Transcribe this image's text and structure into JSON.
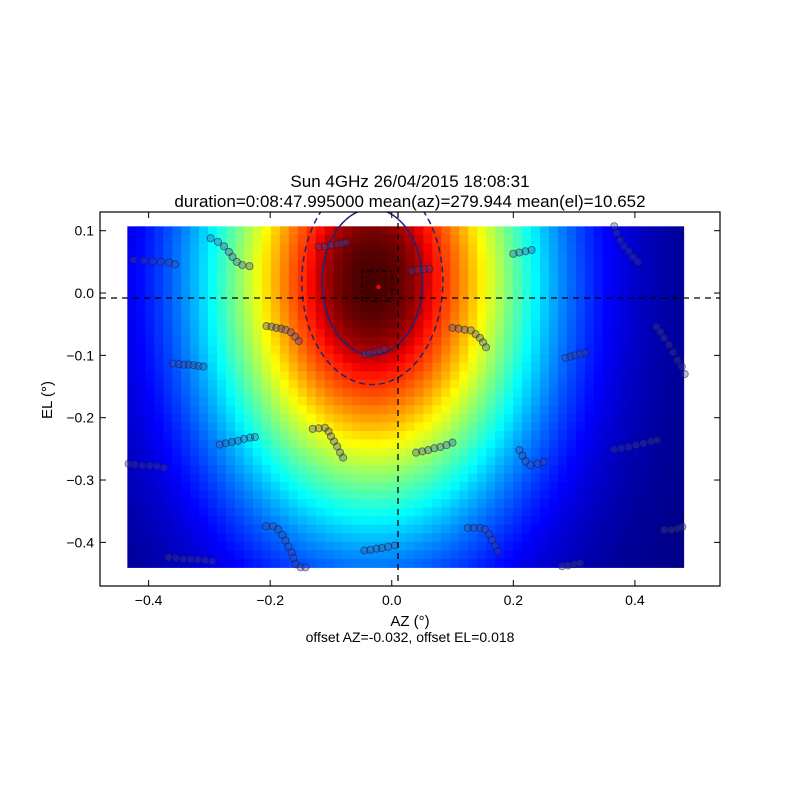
{
  "chart_data": {
    "type": "heatmap",
    "title": "Sun 4GHz 26/04/2015 18:08:31",
    "subtitle": "duration=0:08:47.995000 mean(az)=279.944 mean(el)=10.652",
    "xlabel": "AZ (°)",
    "ylabel": "EL (°)",
    "footer": "offset AZ=-0.032, offset EL=0.018",
    "xlim": [
      -0.48,
      0.54
    ],
    "ylim": [
      -0.47,
      0.13
    ],
    "x_ticks": [
      -0.4,
      -0.2,
      0.0,
      0.2,
      0.4
    ],
    "x_tick_labels": [
      "−0.4",
      "−0.2",
      "0.0",
      "0.2",
      "0.4"
    ],
    "y_ticks": [
      0.1,
      0.0,
      -0.1,
      -0.2,
      -0.3,
      -0.4
    ],
    "y_tick_labels": [
      "0.1",
      "0.0",
      "−0.1",
      "−0.2",
      "−0.3",
      "−0.4"
    ],
    "image_extent": {
      "x": [
        -0.435,
        0.48
      ],
      "y": [
        -0.44,
        0.107
      ]
    },
    "beam_model": {
      "center_az": -0.032,
      "center_el": 0.018,
      "sigma_az": 0.19,
      "sigma_el": 0.27,
      "colormap": "jet"
    },
    "contours": [
      {
        "style": "solid",
        "color": "#1a237e",
        "level": 0.91
      },
      {
        "style": "dashed",
        "color": "#1a237e",
        "level": 0.83
      }
    ],
    "crosshair": {
      "az": 0.0,
      "el": 0.0,
      "style": "dashed"
    },
    "peak_marker": {
      "az": -0.032,
      "el": 0.018,
      "color": "#ff0000"
    },
    "peak_box": {
      "az": [
        -0.058,
        -0.008
      ],
      "el": [
        -0.008,
        0.042
      ]
    },
    "scan_points": [
      {
        "az": -0.425,
        "el": 0.053
      },
      {
        "az": -0.408,
        "el": 0.052
      },
      {
        "az": -0.394,
        "el": 0.051
      },
      {
        "az": -0.38,
        "el": 0.05
      },
      {
        "az": -0.366,
        "el": 0.049
      },
      {
        "az": -0.357,
        "el": 0.046
      },
      {
        "az": -0.298,
        "el": 0.088
      },
      {
        "az": -0.286,
        "el": 0.082
      },
      {
        "az": -0.276,
        "el": 0.075
      },
      {
        "az": -0.268,
        "el": 0.066
      },
      {
        "az": -0.262,
        "el": 0.058
      },
      {
        "az": -0.255,
        "el": 0.05
      },
      {
        "az": -0.246,
        "el": 0.045
      },
      {
        "az": -0.234,
        "el": 0.043
      },
      {
        "az": -0.12,
        "el": 0.074
      },
      {
        "az": -0.11,
        "el": 0.075
      },
      {
        "az": -0.1,
        "el": 0.077
      },
      {
        "az": -0.09,
        "el": 0.078
      },
      {
        "az": -0.082,
        "el": 0.079
      },
      {
        "az": -0.075,
        "el": 0.081
      },
      {
        "az": 0.033,
        "el": 0.035
      },
      {
        "az": 0.043,
        "el": 0.037
      },
      {
        "az": 0.053,
        "el": 0.038
      },
      {
        "az": 0.062,
        "el": 0.039
      },
      {
        "az": 0.2,
        "el": 0.063
      },
      {
        "az": 0.21,
        "el": 0.065
      },
      {
        "az": 0.22,
        "el": 0.067
      },
      {
        "az": 0.23,
        "el": 0.069
      },
      {
        "az": 0.366,
        "el": 0.107
      },
      {
        "az": 0.37,
        "el": 0.096
      },
      {
        "az": 0.376,
        "el": 0.085
      },
      {
        "az": 0.382,
        "el": 0.075
      },
      {
        "az": 0.39,
        "el": 0.067
      },
      {
        "az": 0.397,
        "el": 0.058
      },
      {
        "az": 0.405,
        "el": 0.05
      },
      {
        "az": -0.206,
        "el": -0.053
      },
      {
        "az": -0.198,
        "el": -0.054
      },
      {
        "az": -0.19,
        "el": -0.056
      },
      {
        "az": -0.182,
        "el": -0.057
      },
      {
        "az": -0.175,
        "el": -0.059
      },
      {
        "az": -0.166,
        "el": -0.063
      },
      {
        "az": -0.159,
        "el": -0.07
      },
      {
        "az": -0.153,
        "el": -0.077
      },
      {
        "az": -0.044,
        "el": -0.098
      },
      {
        "az": -0.036,
        "el": -0.097
      },
      {
        "az": -0.028,
        "el": -0.095
      },
      {
        "az": -0.02,
        "el": -0.093
      },
      {
        "az": -0.012,
        "el": -0.09
      },
      {
        "az": 0.1,
        "el": -0.056
      },
      {
        "az": 0.11,
        "el": -0.057
      },
      {
        "az": 0.12,
        "el": -0.059
      },
      {
        "az": 0.13,
        "el": -0.06
      },
      {
        "az": 0.138,
        "el": -0.066
      },
      {
        "az": 0.145,
        "el": -0.072
      },
      {
        "az": 0.15,
        "el": -0.079
      },
      {
        "az": 0.155,
        "el": -0.087
      },
      {
        "az": 0.286,
        "el": -0.104
      },
      {
        "az": 0.294,
        "el": -0.102
      },
      {
        "az": 0.302,
        "el": -0.1
      },
      {
        "az": 0.31,
        "el": -0.098
      },
      {
        "az": 0.318,
        "el": -0.096
      },
      {
        "az": 0.435,
        "el": -0.054
      },
      {
        "az": 0.442,
        "el": -0.062
      },
      {
        "az": 0.448,
        "el": -0.072
      },
      {
        "az": 0.456,
        "el": -0.083
      },
      {
        "az": 0.463,
        "el": -0.095
      },
      {
        "az": 0.47,
        "el": -0.108
      },
      {
        "az": 0.477,
        "el": -0.118
      },
      {
        "az": 0.482,
        "el": -0.13
      },
      {
        "az": -0.36,
        "el": -0.113
      },
      {
        "az": -0.35,
        "el": -0.114
      },
      {
        "az": -0.342,
        "el": -0.115
      },
      {
        "az": -0.334,
        "el": -0.115
      },
      {
        "az": -0.326,
        "el": -0.116
      },
      {
        "az": -0.318,
        "el": -0.117
      },
      {
        "az": -0.31,
        "el": -0.118
      },
      {
        "az": -0.283,
        "el": -0.243
      },
      {
        "az": -0.273,
        "el": -0.241
      },
      {
        "az": -0.263,
        "el": -0.239
      },
      {
        "az": -0.253,
        "el": -0.237
      },
      {
        "az": -0.243,
        "el": -0.234
      },
      {
        "az": -0.233,
        "el": -0.232
      },
      {
        "az": -0.225,
        "el": -0.231
      },
      {
        "az": -0.13,
        "el": -0.218
      },
      {
        "az": -0.12,
        "el": -0.217
      },
      {
        "az": -0.11,
        "el": -0.216
      },
      {
        "az": -0.104,
        "el": -0.222
      },
      {
        "az": -0.1,
        "el": -0.23
      },
      {
        "az": -0.095,
        "el": -0.238
      },
      {
        "az": -0.09,
        "el": -0.246
      },
      {
        "az": -0.085,
        "el": -0.256
      },
      {
        "az": -0.08,
        "el": -0.264
      },
      {
        "az": 0.04,
        "el": -0.256
      },
      {
        "az": 0.05,
        "el": -0.254
      },
      {
        "az": 0.06,
        "el": -0.252
      },
      {
        "az": 0.07,
        "el": -0.249
      },
      {
        "az": 0.08,
        "el": -0.247
      },
      {
        "az": 0.09,
        "el": -0.244
      },
      {
        "az": 0.1,
        "el": -0.24
      },
      {
        "az": 0.21,
        "el": -0.252
      },
      {
        "az": 0.215,
        "el": -0.261
      },
      {
        "az": 0.22,
        "el": -0.27
      },
      {
        "az": 0.228,
        "el": -0.276
      },
      {
        "az": 0.24,
        "el": -0.274
      },
      {
        "az": 0.25,
        "el": -0.271
      },
      {
        "az": 0.366,
        "el": -0.251
      },
      {
        "az": 0.378,
        "el": -0.249
      },
      {
        "az": 0.39,
        "el": -0.247
      },
      {
        "az": 0.402,
        "el": -0.244
      },
      {
        "az": 0.414,
        "el": -0.241
      },
      {
        "az": 0.426,
        "el": -0.238
      },
      {
        "az": 0.436,
        "el": -0.236
      },
      {
        "az": -0.433,
        "el": -0.274
      },
      {
        "az": -0.423,
        "el": -0.275
      },
      {
        "az": -0.41,
        "el": -0.277
      },
      {
        "az": -0.398,
        "el": -0.277
      },
      {
        "az": -0.386,
        "el": -0.278
      },
      {
        "az": -0.375,
        "el": -0.28
      },
      {
        "az": -0.367,
        "el": -0.424
      },
      {
        "az": -0.355,
        "el": -0.425
      },
      {
        "az": -0.343,
        "el": -0.427
      },
      {
        "az": -0.331,
        "el": -0.427
      },
      {
        "az": -0.319,
        "el": -0.428
      },
      {
        "az": -0.307,
        "el": -0.429
      },
      {
        "az": -0.295,
        "el": -0.43
      },
      {
        "az": -0.207,
        "el": -0.374
      },
      {
        "az": -0.195,
        "el": -0.374
      },
      {
        "az": -0.187,
        "el": -0.379
      },
      {
        "az": -0.18,
        "el": -0.388
      },
      {
        "az": -0.175,
        "el": -0.397
      },
      {
        "az": -0.17,
        "el": -0.407
      },
      {
        "az": -0.165,
        "el": -0.416
      },
      {
        "az": -0.162,
        "el": -0.425
      },
      {
        "az": -0.158,
        "el": -0.435
      },
      {
        "az": -0.15,
        "el": -0.44
      },
      {
        "az": -0.142,
        "el": -0.44
      },
      {
        "az": -0.045,
        "el": -0.413
      },
      {
        "az": -0.035,
        "el": -0.412
      },
      {
        "az": -0.025,
        "el": -0.41
      },
      {
        "az": -0.016,
        "el": -0.409
      },
      {
        "az": -0.006,
        "el": -0.407
      },
      {
        "az": 0.005,
        "el": -0.405
      },
      {
        "az": 0.125,
        "el": -0.377
      },
      {
        "az": 0.135,
        "el": -0.377
      },
      {
        "az": 0.145,
        "el": -0.377
      },
      {
        "az": 0.153,
        "el": -0.379
      },
      {
        "az": 0.16,
        "el": -0.387
      },
      {
        "az": 0.165,
        "el": -0.396
      },
      {
        "az": 0.17,
        "el": -0.405
      },
      {
        "az": 0.175,
        "el": -0.415
      },
      {
        "az": 0.28,
        "el": -0.438
      },
      {
        "az": 0.29,
        "el": -0.437
      },
      {
        "az": 0.3,
        "el": -0.435
      },
      {
        "az": 0.31,
        "el": -0.433
      },
      {
        "az": 0.448,
        "el": -0.38
      },
      {
        "az": 0.46,
        "el": -0.38
      },
      {
        "az": 0.47,
        "el": -0.378
      },
      {
        "az": 0.478,
        "el": -0.375
      }
    ]
  }
}
